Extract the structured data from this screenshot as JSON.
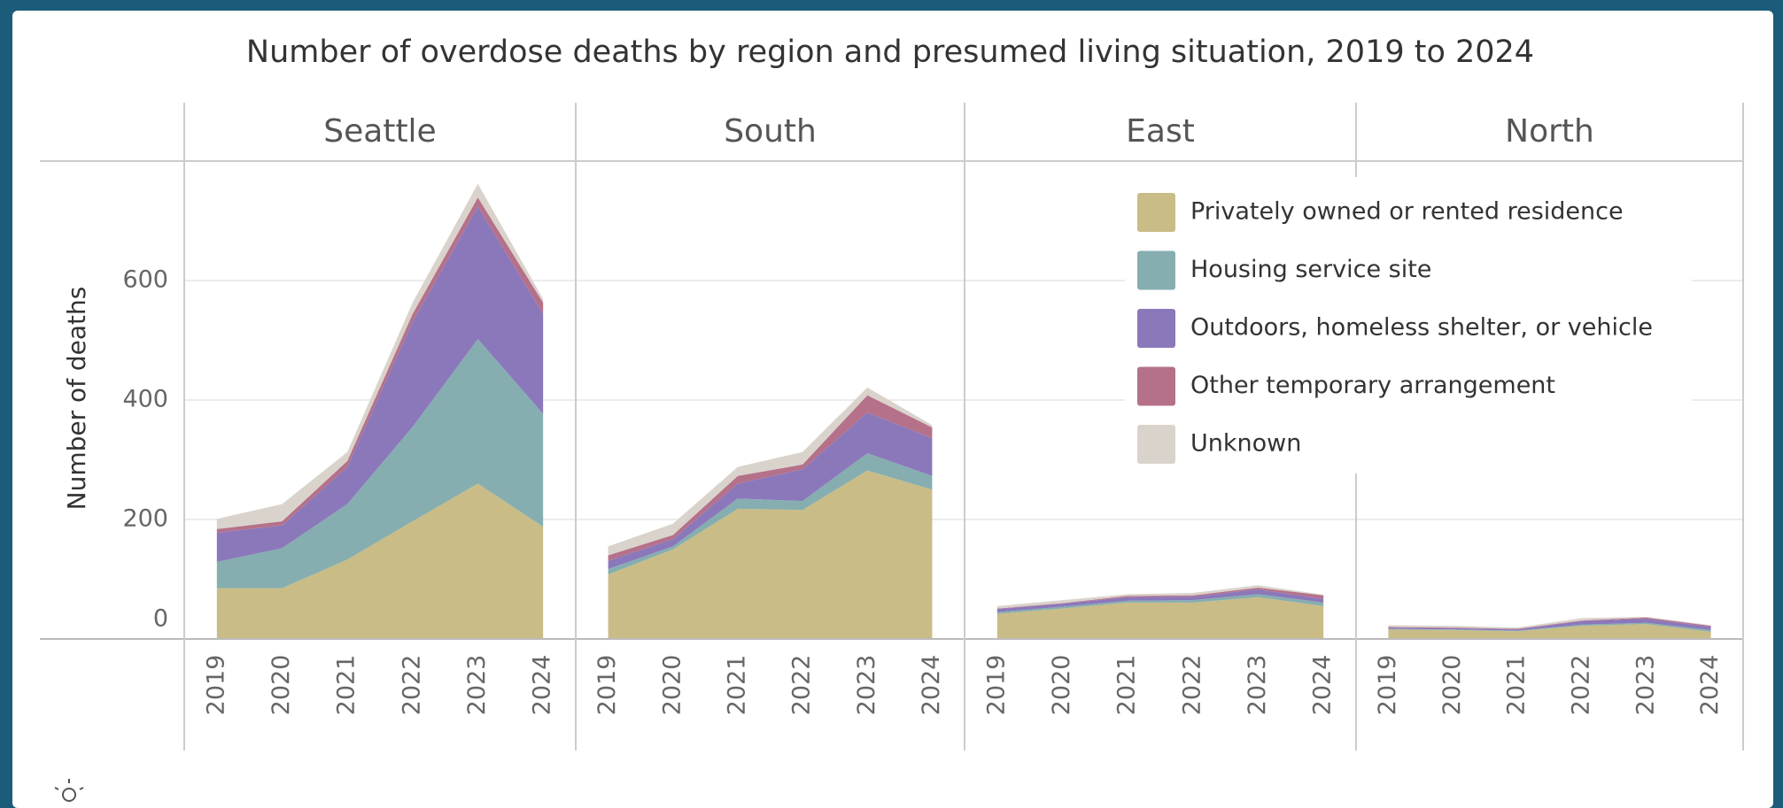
{
  "chart_data": {
    "type": "area",
    "stacked": true,
    "title": "Number of overdose deaths by region and presumed living situation, 2019 to 2024",
    "y_label": "Number of deaths",
    "facets": [
      "Seattle",
      "South",
      "East",
      "North"
    ],
    "x": [
      2019,
      2020,
      2021,
      2022,
      2023,
      2024
    ],
    "ylim": [
      0,
      800
    ],
    "yticks": [
      0,
      200,
      400,
      600
    ],
    "grid": true,
    "legend": "upper right",
    "series": [
      {
        "name": "Privately owned or rented residence",
        "color": "#c9bc87",
        "values": [
          [
            85,
            85,
            133,
            197,
            260,
            188
          ],
          [
            108,
            150,
            218,
            216,
            282,
            250
          ],
          [
            42,
            51,
            61,
            61,
            70,
            55
          ],
          [
            16,
            15,
            13,
            22,
            25,
            12
          ]
        ]
      },
      {
        "name": "Housing service site",
        "color": "#86aeb0",
        "values": [
          [
            44,
            67,
            93,
            158,
            242,
            189
          ],
          [
            9,
            5,
            17,
            15,
            29,
            23
          ],
          [
            3,
            3,
            3,
            4,
            5,
            6
          ],
          [
            1,
            1,
            1,
            2,
            2,
            3
          ]
        ]
      },
      {
        "name": "Outdoors, homeless shelter, or vehicle",
        "color": "#8b78bb",
        "values": [
          [
            49,
            38,
            62,
            176,
            222,
            167
          ],
          [
            14,
            12,
            25,
            53,
            68,
            63
          ],
          [
            5,
            5,
            6,
            6,
            8,
            6
          ],
          [
            2,
            2,
            2,
            6,
            7,
            5
          ]
        ]
      },
      {
        "name": "Other temporary arrangement",
        "color": "#b5718a",
        "values": [
          [
            6,
            7,
            10,
            13,
            15,
            19
          ],
          [
            9,
            7,
            13,
            8,
            29,
            18
          ],
          [
            1,
            1,
            2,
            2,
            3,
            6
          ],
          [
            1,
            1,
            1,
            1,
            2,
            2
          ]
        ]
      },
      {
        "name": "Unknown",
        "color": "#d9d3cc",
        "values": [
          [
            17,
            29,
            15,
            19,
            23,
            6
          ],
          [
            15,
            19,
            15,
            21,
            13,
            4
          ],
          [
            4,
            5,
            3,
            4,
            4,
            1
          ],
          [
            3,
            3,
            2,
            4,
            1,
            1
          ]
        ]
      }
    ]
  }
}
